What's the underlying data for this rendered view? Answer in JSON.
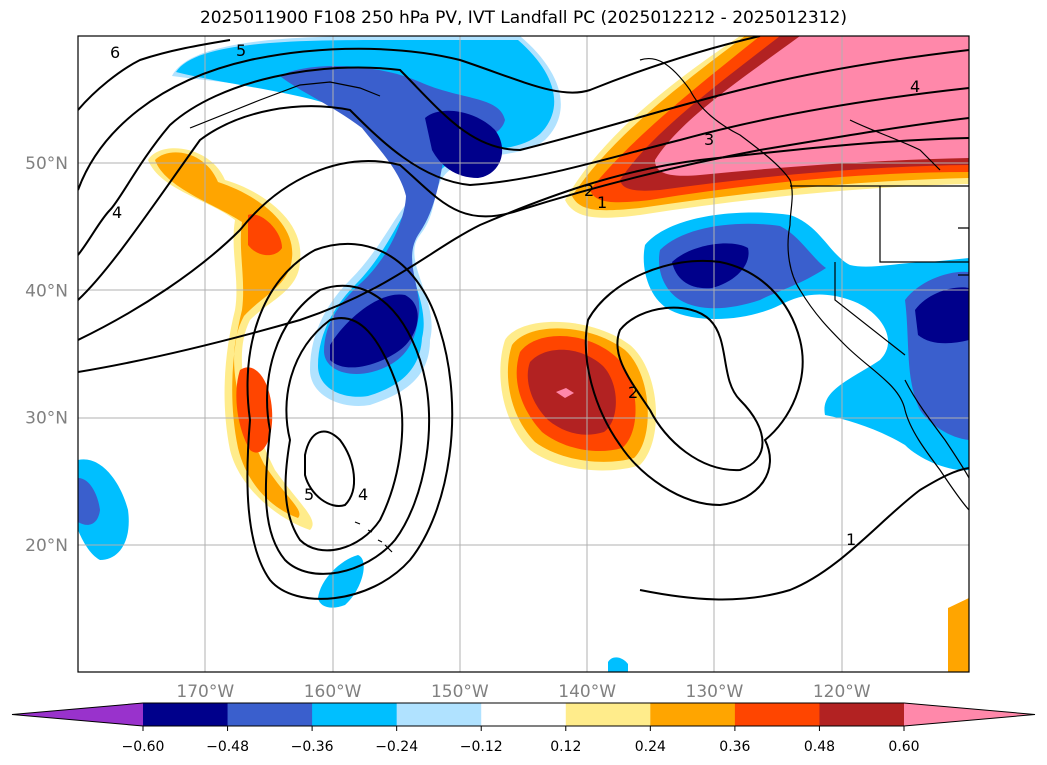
{
  "title": "2025011900 F108 250 hPa PV, IVT Landfall PC (2025012212 - 2025012312)",
  "map": {
    "lon_range": [
      -180,
      -110
    ],
    "lat_range": [
      10,
      60
    ],
    "lon_ticks": [
      {
        "value": -170,
        "label": "170°W"
      },
      {
        "value": -160,
        "label": "160°W"
      },
      {
        "value": -150,
        "label": "150°W"
      },
      {
        "value": -140,
        "label": "140°W"
      },
      {
        "value": -130,
        "label": "130°W"
      },
      {
        "value": -120,
        "label": "120°W"
      }
    ],
    "lat_ticks": [
      {
        "value": 20,
        "label": "20°N"
      },
      {
        "value": 30,
        "label": "30°N"
      },
      {
        "value": 40,
        "label": "40°N"
      },
      {
        "value": 50,
        "label": "50°N"
      }
    ],
    "grid": true,
    "contour_labels": [
      "6",
      "5",
      "4",
      "5",
      "4",
      "2",
      "1",
      "2",
      "3",
      "4",
      "1"
    ]
  },
  "colorbar": {
    "ticks": [
      "−0.60",
      "−0.48",
      "−0.36",
      "−0.24",
      "−0.12",
      "0.12",
      "0.24",
      "0.36",
      "0.48",
      "0.60"
    ],
    "colors": [
      "#9932CC",
      "#00008B",
      "#3A5FCD",
      "#00BFFF",
      "#B0E2FF",
      "#FFFFFF",
      "#FFEC8B",
      "#FFA500",
      "#FF4500",
      "#B22222",
      "#FF88AA"
    ],
    "extend": "both"
  }
}
